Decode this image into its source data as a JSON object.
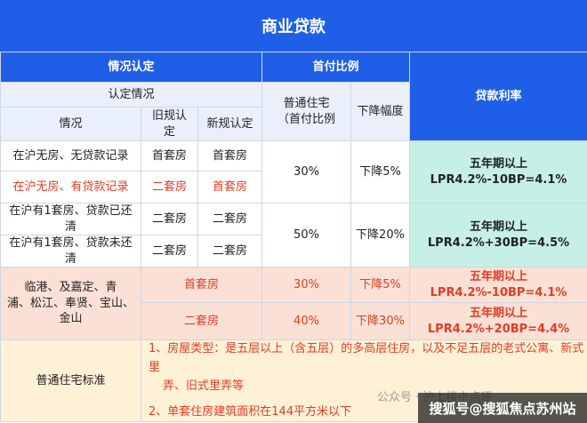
{
  "title": "商业贷款",
  "header": {
    "situation_cert": "情况认定",
    "down_payment": "首付比例",
    "loan_rate": "贷款利率",
    "cert_situation": "认定情况",
    "situation": "情况",
    "old_rule": [
      "旧规认",
      "定"
    ],
    "new_rule": "新规认定",
    "ordinary_house": [
      "普通住宅",
      "（首付比例"
    ],
    "decrease": "下降幅度"
  },
  "rows": {
    "r1": {
      "situation": "在沪无房、无贷款记录",
      "old": "首套房",
      "new": "首套房"
    },
    "r2": {
      "situation": "在沪无房、有贷款记录",
      "old": "二套房",
      "new": "首套房"
    },
    "r3": {
      "situation": "在沪有1套房、贷款已还清",
      "old": "二套房",
      "new": "二套房"
    },
    "r4": {
      "situation": "在沪有1套房、贷款未还清",
      "old": "二套房",
      "new": "二套房"
    }
  },
  "group1": {
    "ratio": "30%",
    "decrease": "下降5%",
    "rate": [
      "五年期以上",
      "LPR4.2%-10BP=4.1%"
    ]
  },
  "group2": {
    "ratio": "50%",
    "decrease": "下降20%",
    "rate": [
      "五年期以上",
      "LPR4.2%+30BP=4.5%"
    ]
  },
  "region": {
    "name": [
      "临港、及嘉定、青",
      "浦、松江、奉贤、宝山、",
      "金山"
    ],
    "first": {
      "label": "首套房",
      "ratio": "30%",
      "decrease": "下降5%",
      "rate": [
        "五年期以上",
        "LPR4.2%-10BP=4.1%"
      ]
    },
    "second": {
      "label": "二套房",
      "ratio": "40%",
      "decrease": "下降30%",
      "rate": [
        "五年期以上",
        "LPR4.2%+20BP=4.4%"
      ]
    }
  },
  "standard": {
    "label": "普通住宅标准",
    "rule1": [
      "1、房屋类型：是五层以上（含五层）的多高层住房，以及不足五层的老式公寓、新式里",
      "弄、旧式里弄等"
    ],
    "rule2": "2、单套住房建筑面积在144平方米以下"
  },
  "watermark": {
    "main": "搜狐号@搜狐焦点苏州站",
    "faint": "公众号 · 沪上楼市点评"
  }
}
